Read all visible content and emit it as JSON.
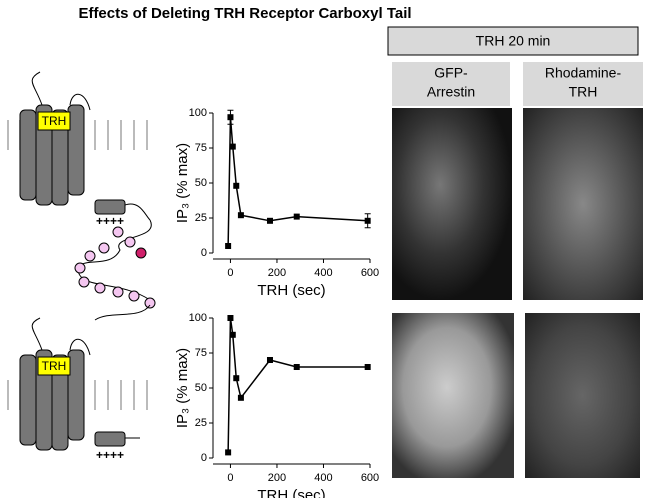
{
  "figure": {
    "title": "Effects of Deleting TRH Receptor Carboxyl Tail",
    "panel_header": "TRH 20 min",
    "image_labels": [
      [
        "GFP-",
        "Arrestin"
      ],
      [
        "Rhodamine-",
        "TRH"
      ]
    ],
    "receptor_labels": [
      {
        "ligand": "TRH",
        "charges": "++++"
      },
      {
        "ligand": "TRH",
        "charges": "++++"
      }
    ]
  },
  "chart_data": [
    {
      "type": "line",
      "x_label": "TRH (sec)",
      "y_label": "IP₃ (% max)",
      "x": [
        -10,
        0,
        10,
        25,
        45,
        170,
        285,
        590
      ],
      "values": [
        5,
        97,
        76,
        48,
        27,
        23,
        26,
        23
      ],
      "errors": [
        null,
        5,
        null,
        null,
        null,
        null,
        null,
        5
      ],
      "color": "#000000",
      "xlim": [
        -75,
        600
      ],
      "ylim": [
        0,
        100
      ],
      "xticks": [
        0,
        200,
        400,
        600
      ],
      "yticks": [
        0,
        25,
        50,
        75,
        100
      ]
    },
    {
      "type": "line",
      "x_label": "TRH (sec)",
      "y_label": "IP₃ (% max)",
      "x": [
        -10,
        0,
        10,
        25,
        45,
        170,
        285,
        590
      ],
      "values": [
        4,
        100,
        88,
        57,
        43,
        70,
        65,
        65
      ],
      "color": "#000000",
      "xlim": [
        -75,
        600
      ],
      "ylim": [
        0,
        100
      ],
      "xticks": [
        0,
        200,
        400,
        600
      ],
      "yticks": [
        0,
        25,
        50,
        75,
        100
      ]
    }
  ]
}
